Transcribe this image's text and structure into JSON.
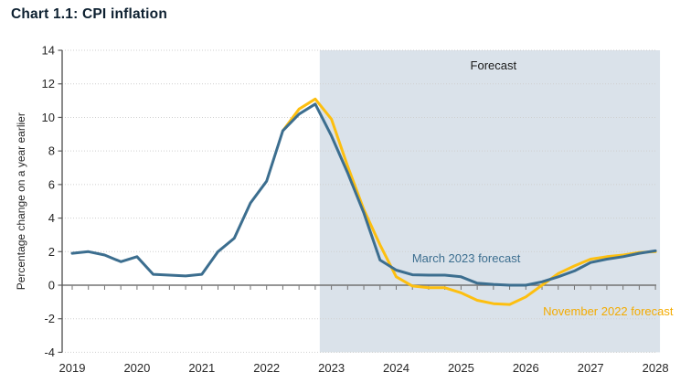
{
  "title": "Chart 1.1: CPI inflation",
  "chart_data": {
    "type": "line",
    "title": "Chart 1.1: CPI inflation",
    "xlabel": "",
    "ylabel": "Percentage change on a year earlier",
    "ylim": [
      -4,
      14
    ],
    "ytick_labels": [
      "14",
      "12",
      "10",
      "8",
      "6",
      "4",
      "2",
      "0",
      "-2",
      "-4"
    ],
    "xlim": [
      2019,
      2028
    ],
    "xtick_labels": [
      "2019",
      "2020",
      "2021",
      "2022",
      "2023",
      "2024",
      "2025",
      "2026",
      "2027",
      "2028"
    ],
    "x_unit": "year, quarterly data points",
    "grid": "horizontal-dotted",
    "legend_position": "inline-annotations",
    "forecast_region": {
      "label": "Forecast",
      "x_start": 2022.82,
      "x_end": 2028.07,
      "fill": "#dae2ea"
    },
    "series": [
      {
        "name": "November 2022 forecast",
        "color": "#fdbf10",
        "x_start": 2022.25,
        "x_step": 0.25,
        "values": [
          9.2,
          10.5,
          11.1,
          9.9,
          7.1,
          4.5,
          2.4,
          0.5,
          -0.05,
          -0.15,
          -0.15,
          -0.45,
          -0.9,
          -1.1,
          -1.15,
          -0.7,
          0.0,
          0.7,
          1.15,
          1.55,
          1.7,
          1.8,
          1.95,
          2.0
        ]
      },
      {
        "name": "March 2023 forecast",
        "color": "#3c6e8f",
        "x_start": 2019.0,
        "x_step": 0.25,
        "values": [
          1.9,
          2.0,
          1.8,
          1.4,
          1.7,
          0.65,
          0.6,
          0.55,
          0.65,
          2.0,
          2.8,
          4.9,
          6.2,
          9.2,
          10.2,
          10.8,
          8.9,
          6.7,
          4.3,
          1.5,
          0.9,
          0.62,
          0.6,
          0.6,
          0.5,
          0.12,
          0.05,
          0.0,
          0.0,
          0.2,
          0.5,
          0.85,
          1.35,
          1.55,
          1.7,
          1.9,
          2.05
        ]
      }
    ],
    "annotations": [
      {
        "text": "Forecast",
        "x": 2025.5,
        "y": 12.85,
        "color": "#1a1a1a",
        "anchor": "middle"
      },
      {
        "text": "March 2023 forecast",
        "x": 2025.08,
        "y": 1.36,
        "color": "#3c6e8f",
        "anchor": "middle"
      },
      {
        "text": "November 2022 forecast",
        "x": 2027.27,
        "y": -1.8,
        "color": "#f3ab00",
        "anchor": "middle"
      }
    ],
    "axis_colors": {
      "grid": "#cfcfcf",
      "zero_line": "#737373",
      "y_axis": "#595959",
      "tick_text": "#262626"
    }
  }
}
